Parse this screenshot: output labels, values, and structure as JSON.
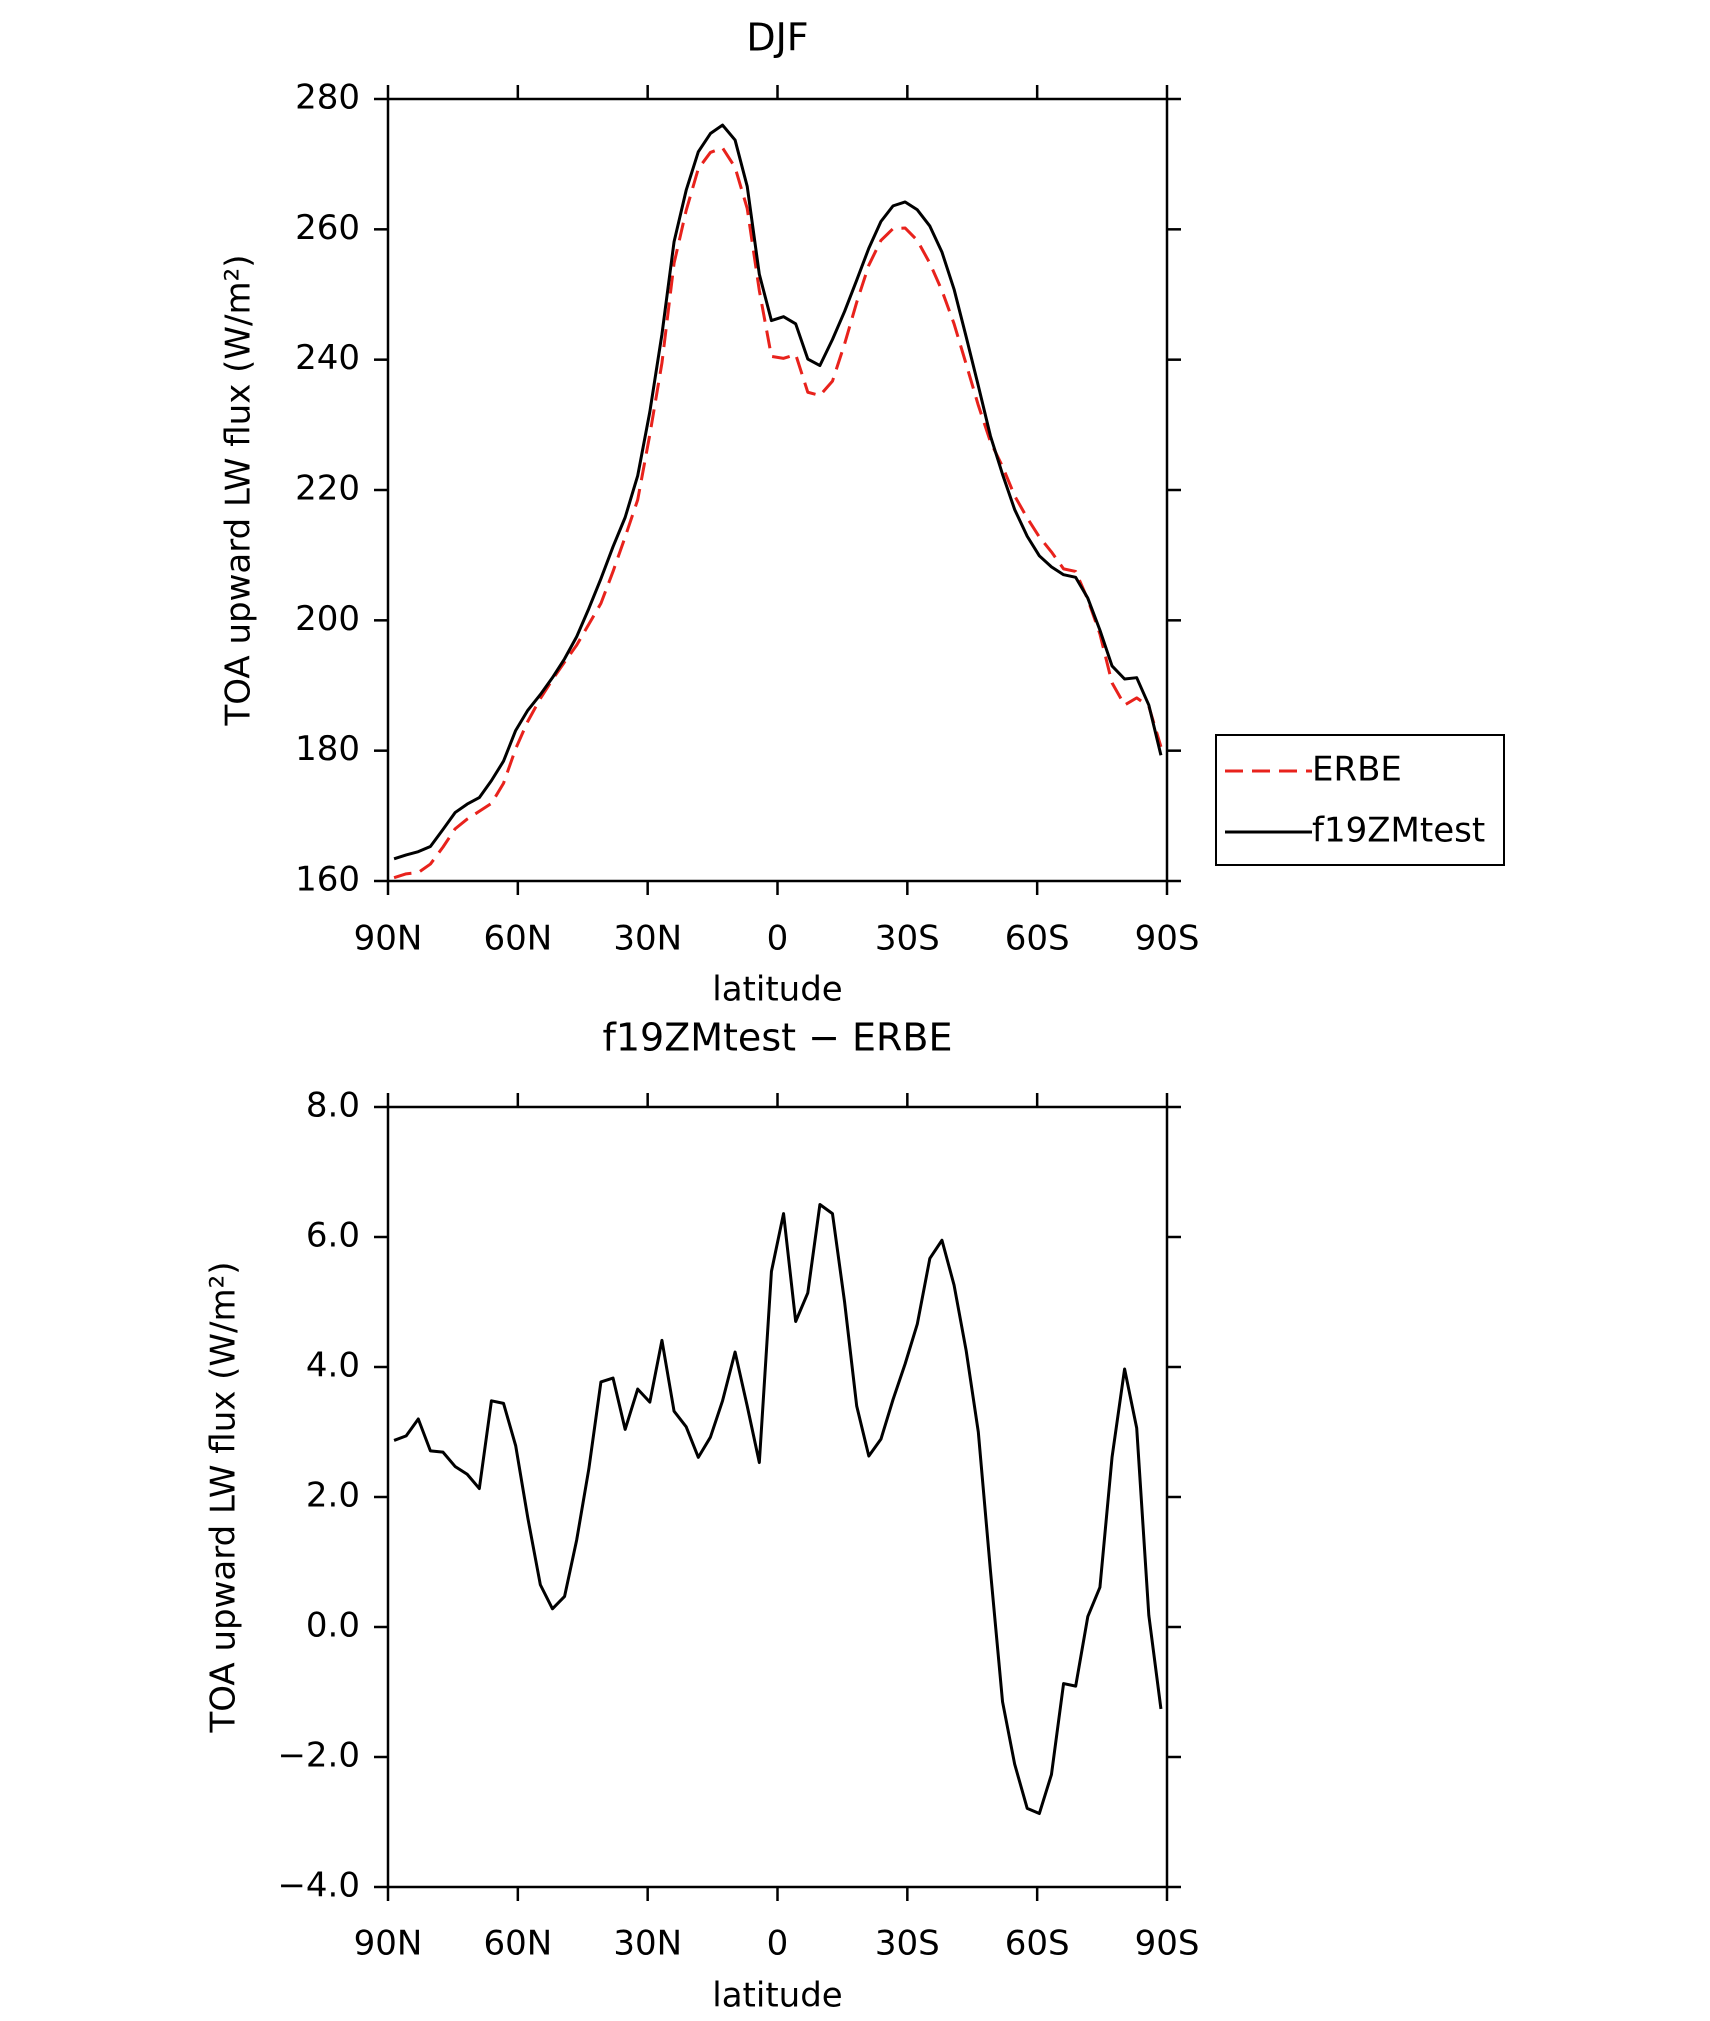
{
  "chart_data": [
    {
      "type": "line",
      "title": "DJF",
      "xlabel": "latitude",
      "ylabel": "TOA upward LW flux (W/m²)",
      "x": [
        88.6,
        85.8,
        83.0,
        80.2,
        77.3,
        74.5,
        71.7,
        68.9,
        66.1,
        63.3,
        60.5,
        57.7,
        54.8,
        52.0,
        49.2,
        46.4,
        43.6,
        40.8,
        38.0,
        35.2,
        32.3,
        29.5,
        26.7,
        23.9,
        21.1,
        18.3,
        15.5,
        12.7,
        9.8,
        7.0,
        4.2,
        1.4,
        -1.4,
        -4.2,
        -7.0,
        -9.8,
        -12.7,
        -15.5,
        -18.3,
        -21.1,
        -23.9,
        -26.7,
        -29.5,
        -32.3,
        -35.2,
        -38.0,
        -40.8,
        -43.6,
        -46.4,
        -49.2,
        -52.0,
        -54.8,
        -57.7,
        -60.5,
        -63.3,
        -66.1,
        -68.9,
        -71.7,
        -74.5,
        -77.3,
        -80.2,
        -83.0,
        -85.8,
        -88.6
      ],
      "series": [
        {
          "name": "ERBE",
          "color": "#e8221c",
          "dash": true,
          "values": [
            160.5,
            161.1,
            161.3,
            162.6,
            165.2,
            168.0,
            169.5,
            170.7,
            171.9,
            175.0,
            180.3,
            184.5,
            188.0,
            190.9,
            193.6,
            196.2,
            199.4,
            202.6,
            207.5,
            212.8,
            218.5,
            228.5,
            239.5,
            254.8,
            262.9,
            269.3,
            271.8,
            272.5,
            269.5,
            263.2,
            250.6,
            240.5,
            240.2,
            240.8,
            235.0,
            234.5,
            236.7,
            242.4,
            248.8,
            254.5,
            258.3,
            260.1,
            260.2,
            258.3,
            254.8,
            250.6,
            245.5,
            239.3,
            233.0,
            227.4,
            223.6,
            219.1,
            215.7,
            212.8,
            210.5,
            207.9,
            207.5,
            203.2,
            197.9,
            190.4,
            187.0,
            188.1,
            186.8,
            180.6
          ]
        },
        {
          "name": "f19ZMtest",
          "color": "#000000",
          "dash": false,
          "values": [
            163.4,
            164.0,
            164.5,
            165.3,
            167.9,
            170.5,
            171.8,
            172.8,
            175.4,
            178.4,
            183.1,
            186.2,
            188.6,
            191.2,
            194.1,
            197.5,
            201.8,
            206.4,
            211.3,
            215.8,
            222.2,
            232.0,
            243.9,
            258.1,
            266.0,
            271.9,
            274.7,
            276.0,
            273.7,
            266.6,
            253.1,
            246.0,
            246.6,
            245.5,
            240.1,
            239.1,
            243.1,
            247.4,
            252.2,
            257.1,
            261.2,
            263.6,
            264.2,
            263.0,
            260.5,
            256.5,
            250.8,
            243.5,
            236.0,
            228.3,
            222.4,
            217.0,
            212.9,
            209.9,
            208.2,
            207.0,
            206.6,
            203.4,
            198.5,
            193.0,
            191.0,
            191.2,
            187.0,
            179.3
          ]
        }
      ],
      "xlim": [
        90,
        -90
      ],
      "xticks": [
        {
          "value": 90,
          "label": "90N"
        },
        {
          "value": 60,
          "label": "60N"
        },
        {
          "value": 30,
          "label": "30N"
        },
        0,
        {
          "value": -30,
          "label": "30S"
        },
        {
          "value": -60,
          "label": "60S"
        },
        {
          "value": -90,
          "label": "90S"
        }
      ],
      "ylim": [
        160,
        280
      ],
      "yticks": [
        160,
        180,
        200,
        220,
        240,
        260,
        280
      ],
      "legend": "right"
    },
    {
      "type": "line",
      "title": "f19ZMtest − ERBE",
      "xlabel": "latitude",
      "ylabel": "TOA upward LW flux (W/m²)",
      "x": [
        88.6,
        85.8,
        83.0,
        80.2,
        77.3,
        74.5,
        71.7,
        68.9,
        66.1,
        63.3,
        60.5,
        57.7,
        54.8,
        52.0,
        49.2,
        46.4,
        43.6,
        40.8,
        38.0,
        35.2,
        32.3,
        29.5,
        26.7,
        23.9,
        21.1,
        18.3,
        15.5,
        12.7,
        9.8,
        7.0,
        4.2,
        1.4,
        -1.4,
        -4.2,
        -7.0,
        -9.8,
        -12.7,
        -15.5,
        -18.3,
        -21.1,
        -23.9,
        -26.7,
        -29.5,
        -32.3,
        -35.2,
        -38.0,
        -40.8,
        -43.6,
        -46.4,
        -49.2,
        -52.0,
        -54.8,
        -57.7,
        -60.5,
        -63.3,
        -66.1,
        -68.9,
        -71.7,
        -74.5,
        -77.3,
        -80.2,
        -83.0,
        -85.8,
        -88.6
      ],
      "color": "#000000",
      "values": [
        2.87,
        2.94,
        3.2,
        2.71,
        2.69,
        2.47,
        2.35,
        2.13,
        3.48,
        3.44,
        2.79,
        1.68,
        0.65,
        0.28,
        0.47,
        1.34,
        2.43,
        3.77,
        3.83,
        3.04,
        3.66,
        3.46,
        4.41,
        3.32,
        3.08,
        2.61,
        2.92,
        3.48,
        4.23,
        3.4,
        2.53,
        5.47,
        6.36,
        4.7,
        5.14,
        6.5,
        6.36,
        5.0,
        3.4,
        2.63,
        2.89,
        3.5,
        4.05,
        4.66,
        5.67,
        5.95,
        5.26,
        4.25,
        3.0,
        0.87,
        -1.15,
        -2.11,
        -2.79,
        -2.87,
        -2.27,
        -0.87,
        -0.91,
        0.16,
        0.61,
        2.61,
        3.97,
        3.06,
        0.18,
        -1.26
      ],
      "xlim": [
        90,
        -90
      ],
      "xticks": [
        {
          "value": 90,
          "label": "90N"
        },
        {
          "value": 60,
          "label": "60N"
        },
        {
          "value": 30,
          "label": "30N"
        },
        0,
        {
          "value": -30,
          "label": "30S"
        },
        {
          "value": -60,
          "label": "60S"
        },
        {
          "value": -90,
          "label": "90S"
        }
      ],
      "ylim": [
        -4,
        8
      ],
      "yticks": [
        {
          "value": -4,
          "label": "−4.0"
        },
        {
          "value": -2,
          "label": "−2.0"
        },
        {
          "value": 0,
          "label": "0.0"
        },
        {
          "value": 2,
          "label": "2.0"
        },
        {
          "value": 4,
          "label": "4.0"
        },
        {
          "value": 6,
          "label": "6.0"
        },
        {
          "value": 8,
          "label": "8.0"
        }
      ]
    }
  ]
}
